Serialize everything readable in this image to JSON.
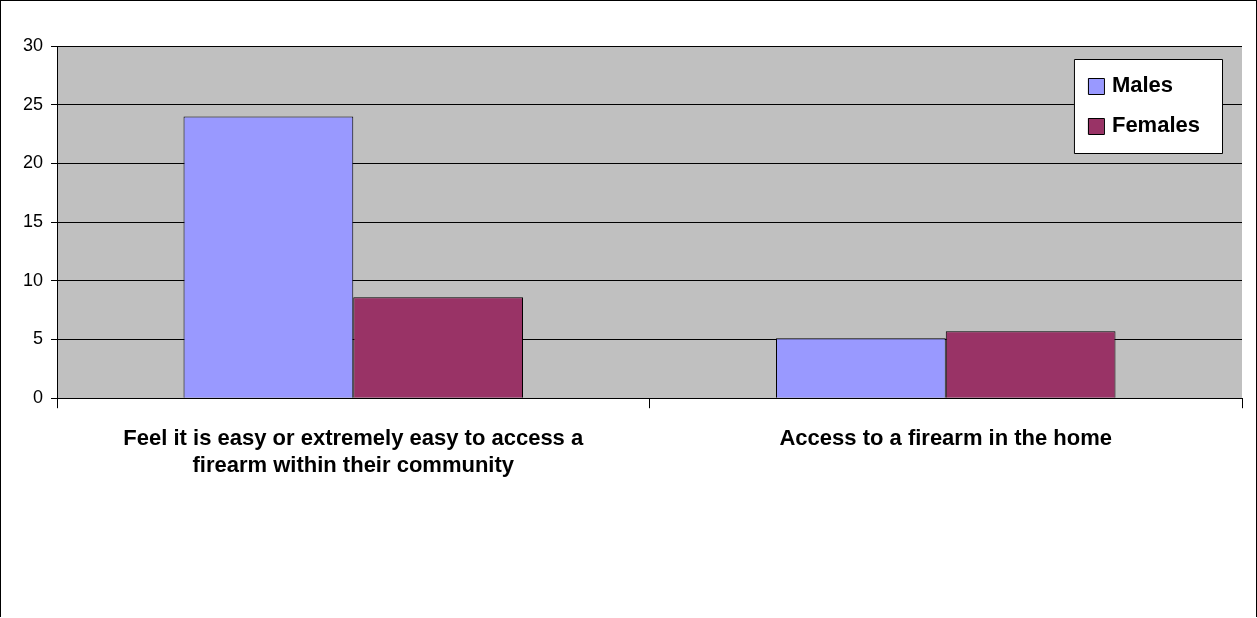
{
  "chart_data": {
    "type": "bar",
    "categories": [
      "Feel it is easy or extremely easy to access a firearm within their community",
      "Access to a firearm in the home"
    ],
    "series": [
      {
        "name": "Males",
        "color": "#9999ff",
        "values": [
          24,
          5.1
        ]
      },
      {
        "name": "Females",
        "color": "#993366",
        "values": [
          8.6,
          5.7
        ]
      }
    ],
    "ylim": [
      0,
      30
    ],
    "yticks": [
      0,
      5,
      10,
      15,
      20,
      25,
      30
    ],
    "grid": "y",
    "legend": "top right"
  }
}
